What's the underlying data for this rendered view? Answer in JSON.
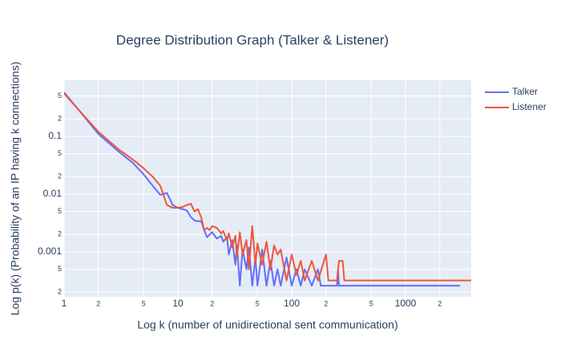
{
  "chart_data": {
    "type": "line",
    "title": "Degree Distribution Graph (Talker & Listener)",
    "x_label": "Log k (number of unidirectional sent communication)",
    "y_label": "Log p(k) (Probability of an IP having k connections)",
    "log_x": true,
    "log_y": true,
    "grid": true,
    "legend": "right",
    "xlim": [
      1,
      3780
    ],
    "ylim": [
      0.000167,
      0.937
    ],
    "xticks": [
      1,
      {
        "value": 2,
        "label": "2"
      },
      {
        "value": 5,
        "label": "5"
      },
      10,
      {
        "value": 20,
        "label": "2"
      },
      {
        "value": 50,
        "label": "5"
      },
      100,
      {
        "value": 200,
        "label": "2"
      },
      {
        "value": 500,
        "label": "5"
      },
      1000,
      {
        "value": 2000,
        "label": "2"
      }
    ],
    "yticks": [
      {
        "value": 0.0002,
        "label": "2"
      },
      {
        "value": 0.0005,
        "label": "5"
      },
      0.001,
      {
        "value": 0.002,
        "label": "2"
      },
      {
        "value": 0.005,
        "label": "5"
      },
      0.01,
      {
        "value": 0.02,
        "label": "2"
      },
      {
        "value": 0.05,
        "label": "5"
      },
      0.1,
      {
        "value": 0.2,
        "label": "2"
      },
      {
        "value": 0.5,
        "label": "5"
      }
    ],
    "series": [
      {
        "name": "Talker",
        "color": "#636efa",
        "x": [
          1,
          2,
          3,
          4,
          5,
          6,
          7,
          8,
          9,
          10,
          11,
          12,
          13,
          14,
          15,
          16,
          17,
          18,
          19,
          20,
          22,
          24,
          25,
          27,
          28,
          30,
          32,
          33,
          35,
          37,
          40,
          42,
          45,
          48,
          50,
          55,
          60,
          65,
          70,
          75,
          80,
          90,
          100,
          110,
          120,
          130,
          150,
          170,
          180,
          250,
          255,
          260,
          3000
        ],
        "values": [
          0.58,
          0.11,
          0.055,
          0.035,
          0.022,
          0.014,
          0.0097,
          0.0105,
          0.0065,
          0.0058,
          0.0055,
          0.0052,
          0.004,
          0.0035,
          0.0034,
          0.0034,
          0.0024,
          0.0018,
          0.002,
          0.0022,
          0.0017,
          0.0019,
          0.0015,
          0.0018,
          0.0009,
          0.0016,
          0.0006,
          0.0013,
          0.00026,
          0.0011,
          0.0005,
          0.0012,
          0.00026,
          0.0008,
          0.00026,
          0.0011,
          0.00026,
          0.0007,
          0.00026,
          0.0005,
          0.00026,
          0.0008,
          0.00026,
          0.0005,
          0.00026,
          0.0005,
          0.00026,
          0.0005,
          0.00026,
          0.00026,
          0.0005,
          0.00026,
          0.00026
        ]
      },
      {
        "name": "Listener",
        "color": "#ef553b",
        "x": [
          1,
          2,
          3,
          4,
          5,
          6,
          7,
          8,
          9,
          10,
          11,
          12,
          13,
          14,
          15,
          16,
          17,
          18,
          19,
          20,
          22,
          24,
          25,
          27,
          28,
          30,
          32,
          33,
          35,
          37,
          40,
          42,
          45,
          48,
          50,
          55,
          60,
          65,
          70,
          75,
          80,
          90,
          100,
          110,
          120,
          130,
          150,
          170,
          200,
          210,
          250,
          260,
          280,
          290,
          3780
        ],
        "values": [
          0.55,
          0.12,
          0.06,
          0.04,
          0.028,
          0.02,
          0.014,
          0.0065,
          0.0058,
          0.0058,
          0.006,
          0.0065,
          0.0068,
          0.005,
          0.0055,
          0.004,
          0.0024,
          0.0026,
          0.0024,
          0.0028,
          0.0026,
          0.0021,
          0.0023,
          0.0016,
          0.0021,
          0.0012,
          0.0019,
          0.0008,
          0.0022,
          0.0009,
          0.0016,
          0.0005,
          0.0028,
          0.0006,
          0.0014,
          0.0006,
          0.0015,
          0.0005,
          0.0013,
          0.0009,
          0.0011,
          0.00032,
          0.0009,
          0.0004,
          0.0007,
          0.00032,
          0.0007,
          0.00032,
          0.0009,
          0.00032,
          0.00032,
          0.0007,
          0.0007,
          0.00032,
          0.00032
        ]
      }
    ]
  }
}
